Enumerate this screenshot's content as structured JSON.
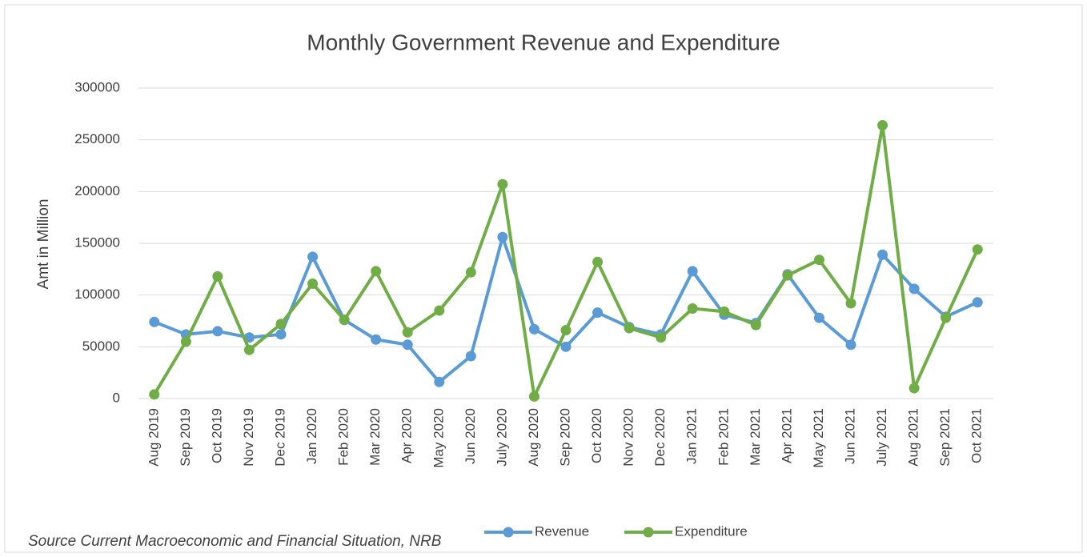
{
  "chart_data": {
    "type": "line",
    "title": "Monthly Government Revenue and Expenditure",
    "y_label": "Amt in Million",
    "source": "Source  Current Macroeconomic and Financial Situation, NRB",
    "categories": [
      "Aug 2019",
      "Sep 2019",
      "Oct 2019",
      "Nov 2019",
      "Dec 2019",
      "Jan 2020",
      "Feb 2020",
      "Mar 2020",
      "Apr 2020",
      "May 2020",
      "Jun 2020",
      "July 2020",
      "Aug 2020",
      "Sep 2020",
      "Oct 2020",
      "Nov 2020",
      "Dec 2020",
      "Jan 2021",
      "Feb 2021",
      "Mar 2021",
      "Apr 2021",
      "May 2021",
      "Jun 2021",
      "July 2021",
      "Aug 2021",
      "Sep 2021",
      "Oct 2021"
    ],
    "series": [
      {
        "name": "Revenue",
        "color": "#5b9bd5",
        "values": [
          74000,
          62000,
          65000,
          59000,
          62000,
          137000,
          76000,
          57000,
          52000,
          16000,
          41000,
          156000,
          67000,
          50000,
          83000,
          69000,
          62000,
          123000,
          81000,
          73000,
          120000,
          78000,
          52000,
          139000,
          106000,
          79000,
          93000
        ]
      },
      {
        "name": "Expenditure",
        "color": "#70ad47",
        "values": [
          4000,
          55000,
          118000,
          47000,
          72000,
          111000,
          76000,
          123000,
          64000,
          85000,
          122000,
          207000,
          2000,
          66000,
          132000,
          68000,
          59000,
          87000,
          84000,
          71000,
          119000,
          134000,
          92000,
          264000,
          10000,
          78000,
          144000
        ]
      }
    ],
    "ylim": [
      0,
      300000
    ],
    "yticks": [
      0,
      50000,
      100000,
      150000,
      200000,
      250000,
      300000
    ],
    "grid": true,
    "legend": "bottom"
  }
}
